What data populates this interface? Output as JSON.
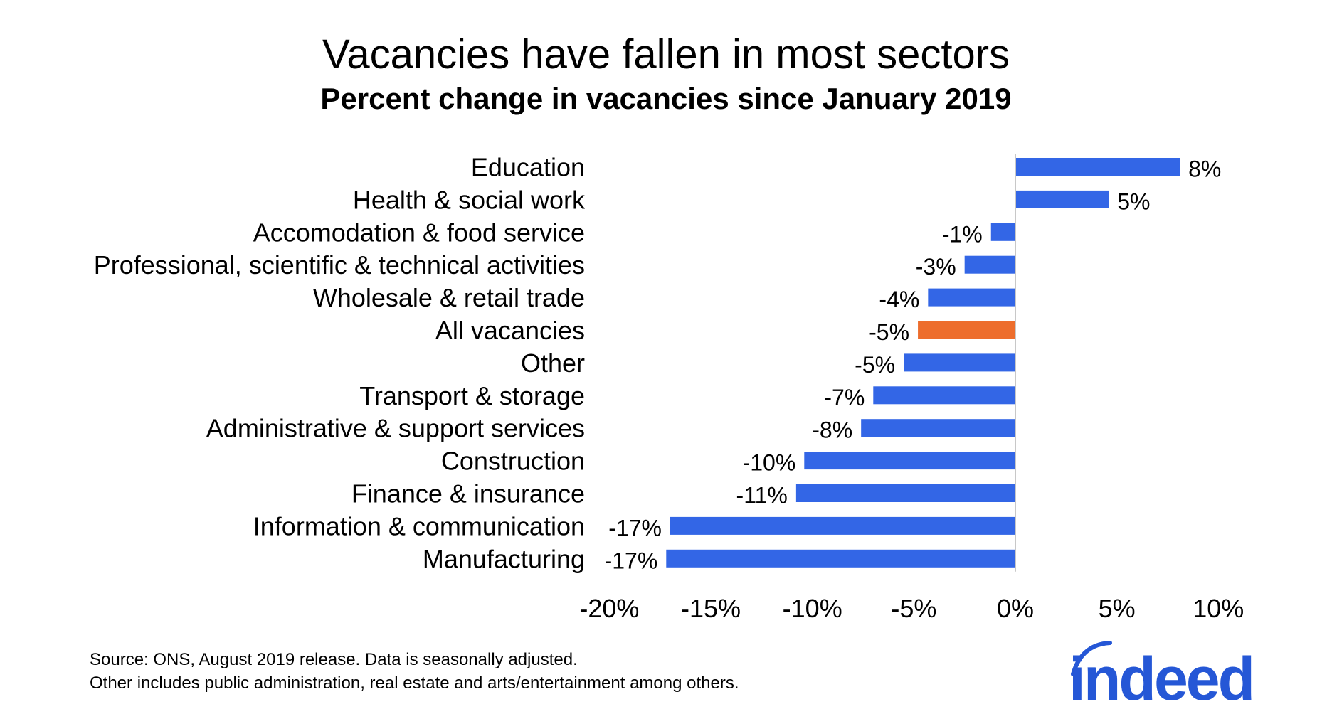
{
  "chart_data": {
    "type": "bar",
    "orientation": "horizontal",
    "title": "Vacancies have fallen in most sectors",
    "subtitle": "Percent change in vacancies since January 2019",
    "categories": [
      "Education",
      "Health & social work",
      "Accomodation & food service",
      "Professional, scientific & technical activities",
      "Wholesale & retail trade",
      "All vacancies",
      "Other",
      "Transport & storage",
      "Administrative & support services",
      "Construction",
      "Finance & insurance",
      "Information & communication",
      "Manufacturing"
    ],
    "values": [
      8.1,
      4.6,
      -1.2,
      -2.5,
      -4.3,
      -4.8,
      -5.5,
      -7.0,
      -7.6,
      -10.4,
      -10.8,
      -17.0,
      -17.2
    ],
    "value_labels": [
      "8%",
      "5%",
      "-1%",
      "-3%",
      "-4%",
      "-5%",
      "-5%",
      "-7%",
      "-8%",
      "-10%",
      "-11%",
      "-17%",
      "-17%"
    ],
    "highlight_category": "All vacancies",
    "colors": {
      "bar": "#3366E6",
      "highlight": "#ED6D2C",
      "zero_line": "#C8C8C8"
    },
    "xlim": [
      -20,
      10
    ],
    "xticks": [
      -20,
      -15,
      -10,
      -5,
      0,
      5,
      10
    ],
    "xtick_labels": [
      "-20%",
      "-15%",
      "-10%",
      "-5%",
      "0%",
      "5%",
      "10%"
    ],
    "xlabel": "",
    "ylabel": "",
    "grid": false,
    "legend": "none"
  },
  "footnotes": {
    "source": "Source: ONS, August 2019 release. Data is seasonally adjusted.",
    "note": "Other includes public administration, real estate and arts/entertainment among others."
  },
  "logo": {
    "text": "indeed",
    "color": "#2557D6"
  }
}
